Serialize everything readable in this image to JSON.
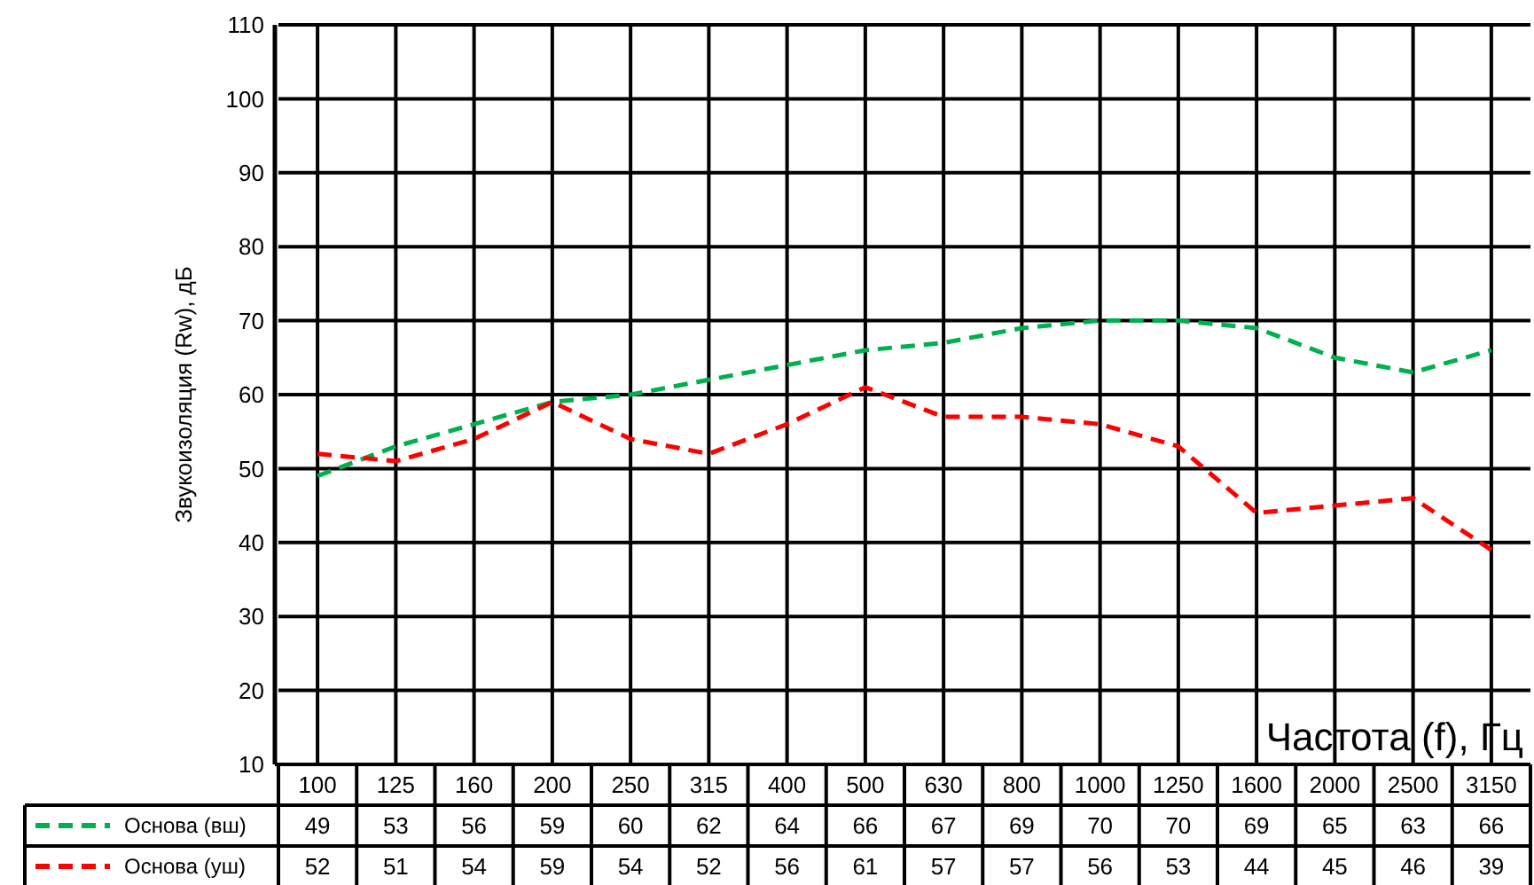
{
  "chart_data": {
    "type": "line",
    "xlabel": "Частота (f), Гц",
    "ylabel": "Звукоизоляция (Rw), дБ",
    "categories": [
      "100",
      "125",
      "160",
      "200",
      "250",
      "315",
      "400",
      "500",
      "630",
      "800",
      "1000",
      "1250",
      "1600",
      "2000",
      "2500",
      "3150"
    ],
    "series": [
      {
        "name": "Основа (вш)",
        "color": "#00b050",
        "values": [
          49,
          53,
          56,
          59,
          60,
          62,
          64,
          66,
          67,
          69,
          70,
          70,
          69,
          65,
          63,
          66
        ]
      },
      {
        "name": "Основа (уш)",
        "color": "#ff0000",
        "values": [
          52,
          51,
          54,
          59,
          54,
          52,
          56,
          61,
          57,
          57,
          56,
          53,
          44,
          45,
          46,
          39
        ]
      }
    ],
    "ylim": [
      10,
      110
    ],
    "yticks": [
      10,
      20,
      30,
      40,
      50,
      60,
      70,
      80,
      90,
      100,
      110
    ],
    "grid": true,
    "legend": "bottom",
    "data_labels": true,
    "marker": "none",
    "line_style": "dashed"
  }
}
